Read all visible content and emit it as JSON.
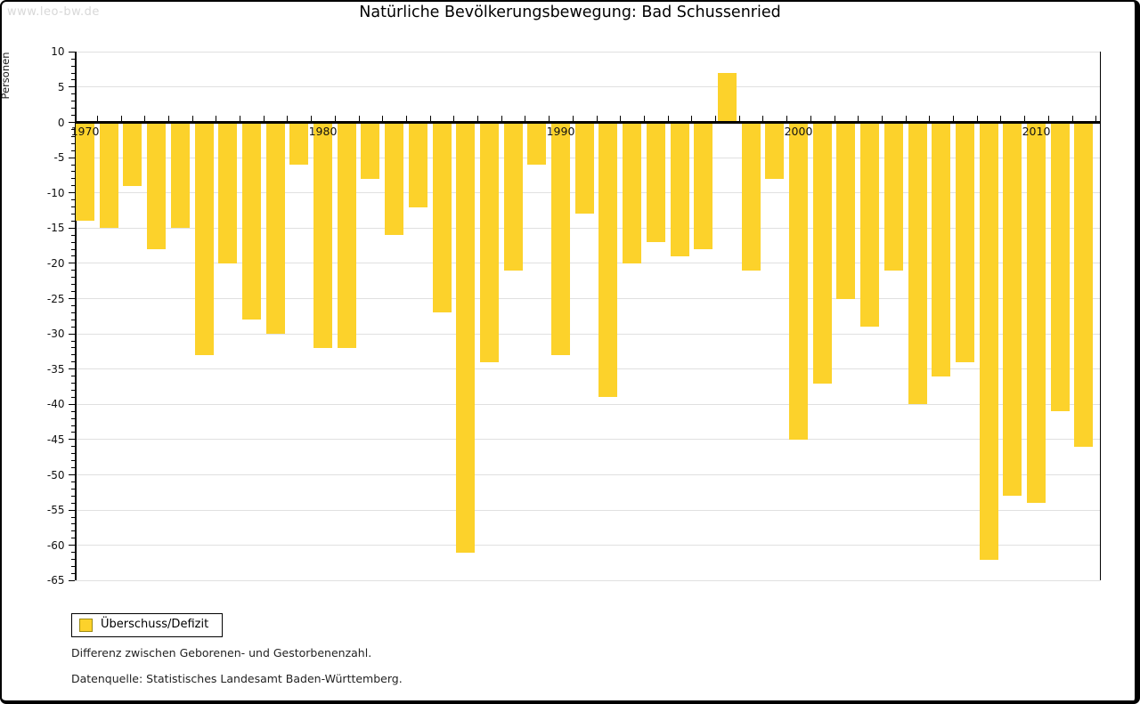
{
  "window": {
    "watermark": "www.leo-bw.de"
  },
  "chart_data": {
    "type": "bar",
    "title": "Natürliche Bevölkerungsbewegung: Bad Schussenried",
    "ylabel": "Personen",
    "xlabel": "",
    "categories": [
      1970,
      1971,
      1972,
      1973,
      1974,
      1975,
      1976,
      1977,
      1978,
      1979,
      1980,
      1981,
      1982,
      1983,
      1984,
      1985,
      1986,
      1987,
      1988,
      1989,
      1990,
      1991,
      1992,
      1993,
      1994,
      1995,
      1996,
      1997,
      1998,
      1999,
      2000,
      2001,
      2002,
      2003,
      2004,
      2005,
      2006,
      2007,
      2008,
      2009,
      2010,
      2011,
      2012
    ],
    "values": [
      -14,
      -15,
      -9,
      -18,
      -15,
      -33,
      -20,
      -28,
      -30,
      -6,
      -32,
      -32,
      -8,
      -16,
      -12,
      -27,
      -61,
      -34,
      -21,
      -6,
      -33,
      -13,
      -39,
      -20,
      -17,
      -19,
      -18,
      7,
      -21,
      -8,
      -45,
      -37,
      -25,
      -29,
      -21,
      -40,
      -36,
      -34,
      -62,
      -53,
      -54,
      -41,
      -46
    ],
    "series_name": "Überschuss/Defizit",
    "ylim": [
      -65,
      10
    ],
    "ytick_step": 5,
    "xtick_labels": [
      "1970",
      "1980",
      "1990",
      "2000",
      "2010"
    ],
    "grid": true,
    "legend_position": "bottom-left",
    "bar_color": "#fcd22b",
    "swatch_border_color": "#9c8a14",
    "gridline_color": "#e0e0e0"
  },
  "legend": {
    "label": "Überschuss/Defizit"
  },
  "footnotes": {
    "line1": "Differenz zwischen Geborenen- und Gestorbenenzahl.",
    "line2": "Datenquelle: Statistisches Landesamt Baden-Württemberg."
  }
}
